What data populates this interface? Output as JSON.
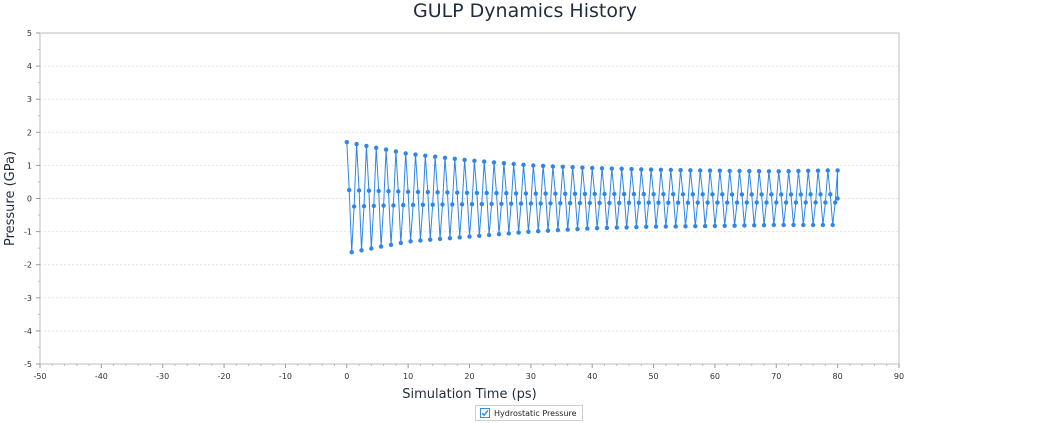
{
  "chart_data": {
    "type": "line",
    "title": "GULP Dynamics History",
    "xlabel": "Simulation Time (ps)",
    "ylabel": "Pressure (GPa)",
    "xlim": [
      -50,
      90
    ],
    "ylim": [
      -5,
      5
    ],
    "x_ticks": [
      "-50",
      "-40",
      "-30",
      "-20",
      "-10",
      "0",
      "10",
      "20",
      "30",
      "40",
      "50",
      "60",
      "70",
      "80",
      "90"
    ],
    "y_ticks": [
      "5",
      "4",
      "3",
      "2",
      "1",
      "0",
      "-1",
      "-2",
      "-3",
      "-4",
      "-5"
    ],
    "grid": true,
    "legend_position": "bottom-center",
    "series": [
      {
        "name": "Hydrostatic Pressure",
        "color": "#2f86e6",
        "visible": true,
        "x_start": 0,
        "x_end": 80,
        "x_step": 0.4,
        "shape": "oscillating",
        "envelope_time": [
          0,
          10,
          20,
          30,
          40,
          50,
          60,
          70,
          80
        ],
        "envelope_max": [
          1.7,
          1.35,
          1.15,
          1.0,
          0.92,
          0.87,
          0.84,
          0.82,
          0.85
        ],
        "envelope_min": [
          -1.65,
          -1.3,
          -1.15,
          -1.0,
          -0.9,
          -0.85,
          -0.83,
          -0.8,
          -0.8
        ]
      }
    ]
  },
  "legend": {
    "label": "Hydrostatic Pressure",
    "checked": true
  }
}
